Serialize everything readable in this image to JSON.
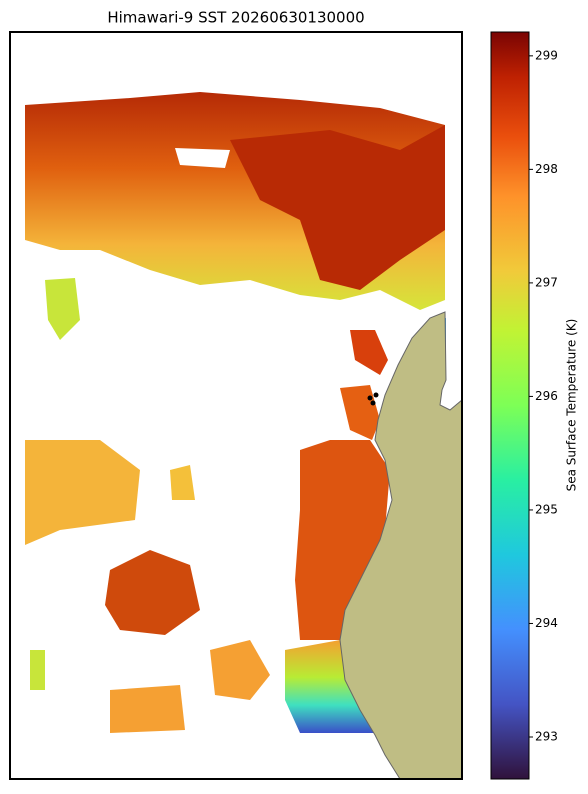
{
  "title": "Himawari-9 SST 20260630130000",
  "colorbar": {
    "label": "Sea Surface Temperature (K)",
    "lim": [
      292.63,
      299.21
    ],
    "ticks": [
      293,
      294,
      295,
      296,
      297,
      298,
      299
    ]
  }
}
